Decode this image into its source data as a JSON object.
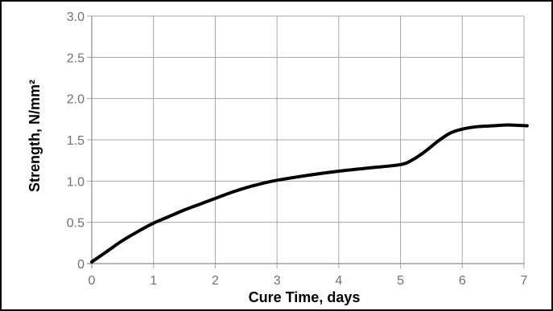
{
  "chart_data": {
    "type": "line",
    "xlabel": "Cure Time, days",
    "ylabel": "Strength, N/mm²",
    "xlim": [
      0,
      7
    ],
    "ylim": [
      0,
      3.0
    ],
    "x_ticks": [
      "0",
      "1",
      "2",
      "3",
      "4",
      "5",
      "6",
      "7"
    ],
    "y_ticks": [
      "0",
      "0.5",
      "1.0",
      "1.5",
      "2.0",
      "2.5",
      "3.0"
    ],
    "grid": true,
    "series": [
      {
        "color": "#000000",
        "points": [
          [
            0.0,
            0.02
          ],
          [
            0.25,
            0.15
          ],
          [
            0.5,
            0.28
          ],
          [
            0.75,
            0.39
          ],
          [
            1.0,
            0.49
          ],
          [
            1.25,
            0.57
          ],
          [
            1.5,
            0.65
          ],
          [
            1.75,
            0.72
          ],
          [
            2.0,
            0.79
          ],
          [
            2.25,
            0.86
          ],
          [
            2.5,
            0.92
          ],
          [
            2.75,
            0.97
          ],
          [
            3.0,
            1.01
          ],
          [
            3.5,
            1.07
          ],
          [
            4.0,
            1.12
          ],
          [
            4.5,
            1.16
          ],
          [
            5.0,
            1.2
          ],
          [
            5.2,
            1.26
          ],
          [
            5.4,
            1.36
          ],
          [
            5.6,
            1.48
          ],
          [
            5.8,
            1.58
          ],
          [
            6.0,
            1.63
          ],
          [
            6.25,
            1.66
          ],
          [
            6.5,
            1.67
          ],
          [
            6.75,
            1.68
          ],
          [
            7.05,
            1.67
          ]
        ]
      }
    ]
  }
}
